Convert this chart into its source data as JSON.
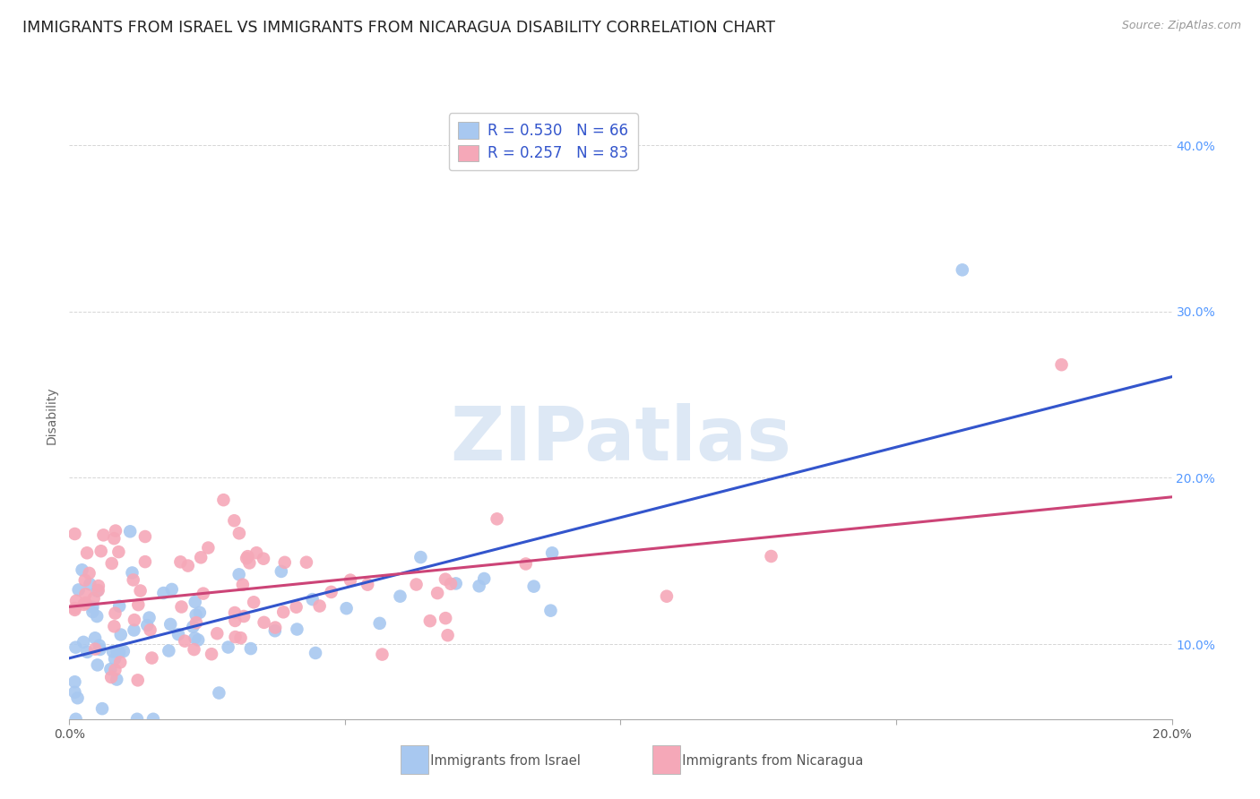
{
  "title": "IMMIGRANTS FROM ISRAEL VS IMMIGRANTS FROM NICARAGUA DISABILITY CORRELATION CHART",
  "source": "Source: ZipAtlas.com",
  "ylabel": "Disability",
  "xlabel_israel": "Immigrants from Israel",
  "xlabel_nicaragua": "Immigrants from Nicaragua",
  "x_min": 0.0,
  "x_max": 0.2,
  "y_min": 0.055,
  "y_max": 0.42,
  "israel_color": "#a8c8f0",
  "nicaragua_color": "#f5a8b8",
  "israel_line_color": "#3355cc",
  "nicaragua_line_color": "#cc4477",
  "israel_R": 0.53,
  "israel_N": 66,
  "nicaragua_R": 0.257,
  "nicaragua_N": 83,
  "background_color": "#ffffff",
  "grid_color": "#cccccc",
  "title_fontsize": 12.5,
  "axis_label_fontsize": 10,
  "tick_fontsize": 10,
  "legend_fontsize": 12,
  "watermark": "ZIPatlas",
  "watermark_color": "#dde8f5",
  "right_tick_color": "#5599ff"
}
